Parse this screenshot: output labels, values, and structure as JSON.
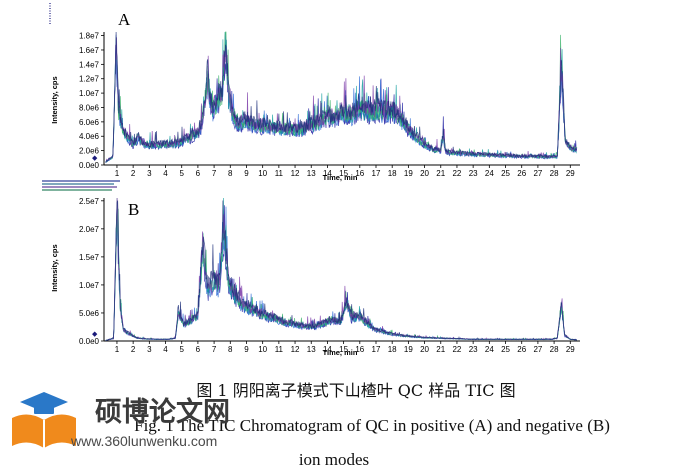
{
  "chart_data": [
    {
      "type": "line",
      "panel_label": "A",
      "xlabel": "Time, min",
      "ylabel": "Intensity, cps",
      "xlim": [
        0.2,
        29.6
      ],
      "ylim": [
        0,
        18500000
      ],
      "xticks": [
        "1",
        "2",
        "3",
        "4",
        "5",
        "6",
        "7",
        "8",
        "9",
        "10",
        "11",
        "12",
        "13",
        "14",
        "15",
        "16",
        "17",
        "18",
        "19",
        "20",
        "21",
        "22",
        "23",
        "24",
        "25",
        "26",
        "27",
        "28",
        "29"
      ],
      "yticks": [
        {
          "v": 0,
          "label": "0.0e0"
        },
        {
          "v": 2000000,
          "label": "2.0e6"
        },
        {
          "v": 4000000,
          "label": "4.0e6"
        },
        {
          "v": 6000000,
          "label": "6.0e6"
        },
        {
          "v": 8000000,
          "label": "8.0e6"
        },
        {
          "v": 10000000,
          "label": "1.0e7"
        },
        {
          "v": 12000000,
          "label": "1.2e7"
        },
        {
          "v": 14000000,
          "label": "1.4e7"
        },
        {
          "v": 16000000,
          "label": "1.6e7"
        },
        {
          "v": 18000000,
          "label": "1.8e7"
        }
      ],
      "colors": [
        "#1a1aa0",
        "#2e6bd6",
        "#16a0a0",
        "#3ab36a",
        "#7a3aa8",
        "#1d2f7a"
      ],
      "series_values": [
        [
          0.3,
          0.4
        ],
        [
          0.75,
          1.2
        ],
        [
          0.95,
          17.0
        ],
        [
          1.1,
          7.5
        ],
        [
          1.4,
          4.6
        ],
        [
          1.7,
          3.8
        ],
        [
          2.0,
          2.9
        ],
        [
          2.3,
          3.8
        ],
        [
          2.6,
          3.0
        ],
        [
          3.0,
          2.8
        ],
        [
          3.5,
          2.8
        ],
        [
          4.0,
          2.9
        ],
        [
          4.5,
          2.9
        ],
        [
          5.0,
          3.2
        ],
        [
          5.5,
          3.8
        ],
        [
          6.0,
          4.5
        ],
        [
          6.3,
          6.0
        ],
        [
          6.6,
          12.0
        ],
        [
          6.9,
          7.5
        ],
        [
          7.2,
          8.8
        ],
        [
          7.5,
          10.0
        ],
        [
          7.7,
          16.5
        ],
        [
          7.9,
          9.5
        ],
        [
          8.2,
          6.5
        ],
        [
          8.6,
          5.8
        ],
        [
          9.0,
          6.2
        ],
        [
          9.5,
          5.6
        ],
        [
          10.0,
          5.4
        ],
        [
          10.5,
          5.3
        ],
        [
          11.0,
          5.1
        ],
        [
          11.5,
          5.0
        ],
        [
          12.0,
          4.9
        ],
        [
          12.5,
          5.0
        ],
        [
          13.0,
          5.6
        ],
        [
          13.5,
          5.9
        ],
        [
          14.0,
          6.8
        ],
        [
          14.5,
          6.5
        ],
        [
          15.0,
          7.4
        ],
        [
          15.5,
          6.9
        ],
        [
          16.0,
          8.0
        ],
        [
          16.5,
          7.2
        ],
        [
          17.0,
          7.6
        ],
        [
          17.5,
          7.3
        ],
        [
          18.0,
          7.5
        ],
        [
          18.5,
          6.4
        ],
        [
          19.0,
          5.0
        ],
        [
          19.5,
          3.8
        ],
        [
          20.0,
          2.9
        ],
        [
          20.5,
          2.2
        ],
        [
          21.0,
          2.0
        ],
        [
          21.15,
          4.2
        ],
        [
          21.3,
          1.8
        ],
        [
          22.0,
          1.6
        ],
        [
          23.0,
          1.5
        ],
        [
          24.0,
          1.4
        ],
        [
          25.0,
          1.3
        ],
        [
          26.0,
          1.2
        ],
        [
          27.0,
          1.2
        ],
        [
          27.8,
          1.1
        ],
        [
          28.2,
          1.2
        ],
        [
          28.45,
          13.5
        ],
        [
          28.7,
          3.2
        ],
        [
          29.0,
          2.4
        ],
        [
          29.4,
          2.1
        ]
      ]
    },
    {
      "type": "line",
      "panel_label": "B",
      "xlabel": "Time, min",
      "ylabel": "Intensity, cps",
      "xlim": [
        0.2,
        29.6
      ],
      "ylim": [
        0,
        25500000
      ],
      "xticks": [
        "1",
        "2",
        "3",
        "4",
        "5",
        "6",
        "7",
        "8",
        "9",
        "10",
        "11",
        "12",
        "13",
        "14",
        "15",
        "16",
        "17",
        "18",
        "19",
        "20",
        "21",
        "22",
        "23",
        "24",
        "25",
        "26",
        "27",
        "28",
        "29"
      ],
      "yticks": [
        {
          "v": 0,
          "label": "0.0e0"
        },
        {
          "v": 5000000,
          "label": "5.0e6"
        },
        {
          "v": 10000000,
          "label": "1.0e7"
        },
        {
          "v": 15000000,
          "label": "1.5e7"
        },
        {
          "v": 20000000,
          "label": "2.0e7"
        },
        {
          "v": 25000000,
          "label": "2.5e7"
        }
      ],
      "colors": [
        "#1a1aa0",
        "#2e6bd6",
        "#16a0a0",
        "#3ab36a",
        "#7a3aa8",
        "#1d2f7a"
      ],
      "series_values": [
        [
          0.3,
          0.1
        ],
        [
          0.8,
          0.5
        ],
        [
          1.0,
          24.5
        ],
        [
          1.2,
          6.0
        ],
        [
          1.4,
          2.0
        ],
        [
          1.8,
          1.2
        ],
        [
          2.2,
          0.6
        ],
        [
          2.6,
          0.4
        ],
        [
          3.5,
          0.3
        ],
        [
          4.2,
          0.3
        ],
        [
          4.6,
          0.5
        ],
        [
          4.8,
          5.0
        ],
        [
          5.1,
          3.0
        ],
        [
          5.5,
          3.5
        ],
        [
          6.0,
          4.5
        ],
        [
          6.3,
          17.0
        ],
        [
          6.6,
          9.0
        ],
        [
          7.0,
          11.0
        ],
        [
          7.3,
          9.5
        ],
        [
          7.6,
          20.0
        ],
        [
          7.9,
          10.5
        ],
        [
          8.3,
          8.0
        ],
        [
          8.7,
          6.5
        ],
        [
          9.2,
          5.8
        ],
        [
          9.7,
          5.2
        ],
        [
          10.2,
          4.5
        ],
        [
          10.8,
          4.0
        ],
        [
          11.4,
          3.2
        ],
        [
          12.0,
          3.0
        ],
        [
          12.6,
          2.6
        ],
        [
          13.2,
          2.5
        ],
        [
          13.8,
          3.2
        ],
        [
          14.3,
          3.8
        ],
        [
          14.8,
          3.4
        ],
        [
          15.2,
          7.0
        ],
        [
          15.5,
          4.0
        ],
        [
          16.0,
          4.4
        ],
        [
          16.5,
          3.0
        ],
        [
          17.0,
          2.0
        ],
        [
          17.5,
          1.6
        ],
        [
          18.0,
          1.2
        ],
        [
          18.5,
          1.0
        ],
        [
          19.2,
          0.8
        ],
        [
          20.0,
          0.6
        ],
        [
          21.0,
          0.5
        ],
        [
          22.0,
          0.4
        ],
        [
          23.0,
          0.3
        ],
        [
          24.0,
          0.3
        ],
        [
          25.0,
          0.3
        ],
        [
          26.0,
          0.3
        ],
        [
          27.0,
          0.3
        ],
        [
          27.8,
          0.3
        ],
        [
          28.2,
          0.5
        ],
        [
          28.45,
          6.5
        ],
        [
          28.65,
          1.0
        ],
        [
          29.0,
          0.3
        ],
        [
          29.4,
          0.2
        ]
      ]
    }
  ],
  "caption": {
    "line_cn": "图 1  阴阳离子模式下山楂叶 QC 样品 TIC 图",
    "line_en_1": "Fig. 1 The TIC Chromatogram of QC in positive (A) and negative (B)",
    "line_en_2": "ion modes"
  },
  "watermark": {
    "text": "硕博论文网",
    "url": "www.360lunwenku.com",
    "colors": {
      "orange": "#f08a1c",
      "blue": "#2a78c8"
    }
  }
}
